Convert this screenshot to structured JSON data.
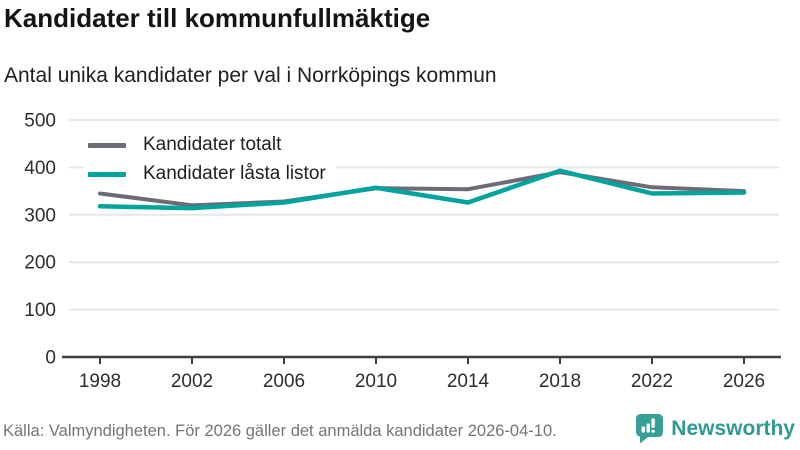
{
  "chart_data": {
    "type": "line",
    "title": "Kandidater till kommunfullmäktige",
    "subtitle": "Antal unika kandidater per val i Norrköpings kommun",
    "x": [
      1998,
      2002,
      2006,
      2010,
      2014,
      2018,
      2022,
      2026
    ],
    "series": [
      {
        "name": "Kandidater totalt",
        "color": "#6e6a75",
        "values": [
          345,
          320,
          328,
          356,
          354,
          390,
          358,
          350
        ]
      },
      {
        "name": "Kandidater låsta listor",
        "color": "#00a49d",
        "values": [
          318,
          314,
          326,
          357,
          326,
          393,
          345,
          347
        ]
      }
    ],
    "ylim": [
      0,
      500
    ],
    "yticks": [
      0,
      100,
      200,
      300,
      400,
      500
    ],
    "grid": true,
    "legend_position": "top-left"
  },
  "footer": {
    "source_text": "Källa: Valmyndigheten. För 2026 gäller det anmälda kandidater 2026-04-10.",
    "brand": "Newsworthy"
  },
  "colors": {
    "logo_teal": "#36a096",
    "line_gray": "#6e6a75",
    "line_teal": "#00a49d",
    "grid": "#e7e7e7",
    "axis": "#3f3f3f"
  }
}
